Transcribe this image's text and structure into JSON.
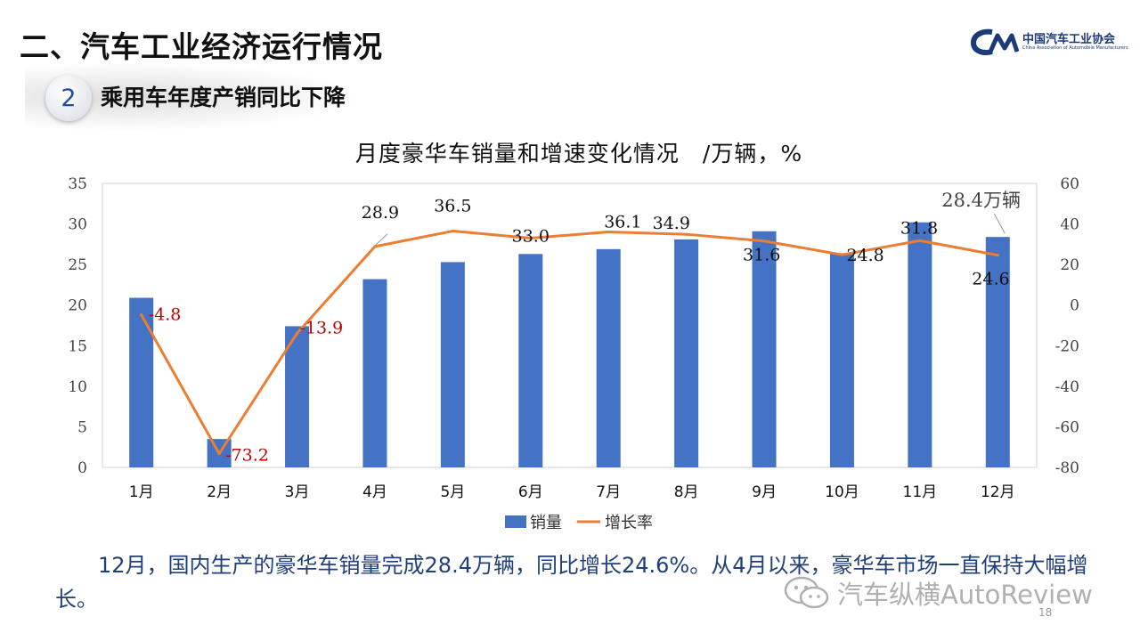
{
  "header": {
    "section_title": "二、汽车工业经济运行情况",
    "badge_number": "2",
    "subtitle": "乘用车年度产销同比下降"
  },
  "logo": {
    "cn": "中国汽车工业协会",
    "en": "China Association of Automobile Manufacturers",
    "icon": "caam-logo-mark"
  },
  "chart_data": {
    "type": "bar",
    "title": "月度豪华车销量和增速变化情况　/万辆，%",
    "categories": [
      "1月",
      "2月",
      "3月",
      "4月",
      "5月",
      "6月",
      "7月",
      "8月",
      "9月",
      "10月",
      "11月",
      "12月"
    ],
    "series": [
      {
        "name": "销量",
        "type": "bar",
        "axis": "left",
        "color": "#4472C4",
        "values": [
          20.9,
          3.5,
          17.4,
          23.2,
          25.3,
          26.3,
          26.9,
          28.1,
          29.1,
          26.4,
          30.2,
          28.4
        ]
      },
      {
        "name": "增长率",
        "type": "line",
        "axis": "right",
        "color": "#ED7D31",
        "values": [
          -4.8,
          -73.2,
          -13.9,
          28.9,
          36.5,
          33.0,
          36.1,
          34.9,
          31.6,
          24.8,
          31.8,
          24.6
        ],
        "labels": [
          "-4.8",
          "-73.2",
          "-13.9",
          "28.9",
          "36.5",
          "33.0",
          "36.1",
          "34.9",
          "31.6",
          "24.8",
          "31.8",
          "24.6"
        ]
      }
    ],
    "y_left": {
      "min": 0,
      "max": 35,
      "ticks": [
        "0",
        "5",
        "10",
        "15",
        "20",
        "25",
        "30",
        "35"
      ]
    },
    "y_right": {
      "min": -80,
      "max": 60,
      "ticks": [
        "-80",
        "-60",
        "-40",
        "-20",
        "0",
        "20",
        "40",
        "60"
      ]
    },
    "annotation": "28.4万辆",
    "legend_position": "bottom",
    "grid": false,
    "negative_label_color": "#C00000"
  },
  "body": {
    "text": "12月，国内生产的豪华车销量完成28.4万辆，同比增长24.6%。从4月以来，豪华车市场一直保持大幅增长。"
  },
  "watermark": {
    "text": "汽车纵横AutoReview",
    "icon": "wechat-icon"
  },
  "page_number": "18"
}
